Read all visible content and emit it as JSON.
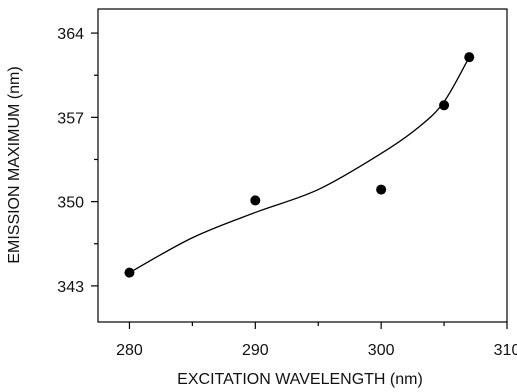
{
  "chart_data": {
    "type": "scatter",
    "xlabel": "EXCITATION WAVELENGTH (nm)",
    "ylabel": "EMISSION MAXIMUM (nm)",
    "xlim": [
      277.5,
      310
    ],
    "ylim": [
      340,
      366
    ],
    "x_ticks": [
      280,
      290,
      300,
      310
    ],
    "x_minor_ticks": [
      285,
      295,
      305
    ],
    "y_ticks": [
      343,
      350,
      357,
      364
    ],
    "y_minor_ticks": [
      346.5,
      353.5,
      360.5
    ],
    "grid": false,
    "colors": {
      "points": "#000000",
      "curve": "#000000",
      "axes": "#000000"
    },
    "series": [
      {
        "points": [
          {
            "x": 280,
            "y": 344.1
          },
          {
            "x": 290,
            "y": 350.1
          },
          {
            "x": 300,
            "y": 351.0
          },
          {
            "x": 305,
            "y": 358.0
          },
          {
            "x": 307,
            "y": 362.0
          }
        ],
        "fit_curve": [
          {
            "x": 280,
            "y": 344.1
          },
          {
            "x": 285,
            "y": 347.0
          },
          {
            "x": 290,
            "y": 349.1
          },
          {
            "x": 295,
            "y": 351.0
          },
          {
            "x": 300,
            "y": 354.0
          },
          {
            "x": 303,
            "y": 356.2
          },
          {
            "x": 305,
            "y": 358.3
          },
          {
            "x": 307,
            "y": 362.0
          }
        ]
      }
    ]
  }
}
